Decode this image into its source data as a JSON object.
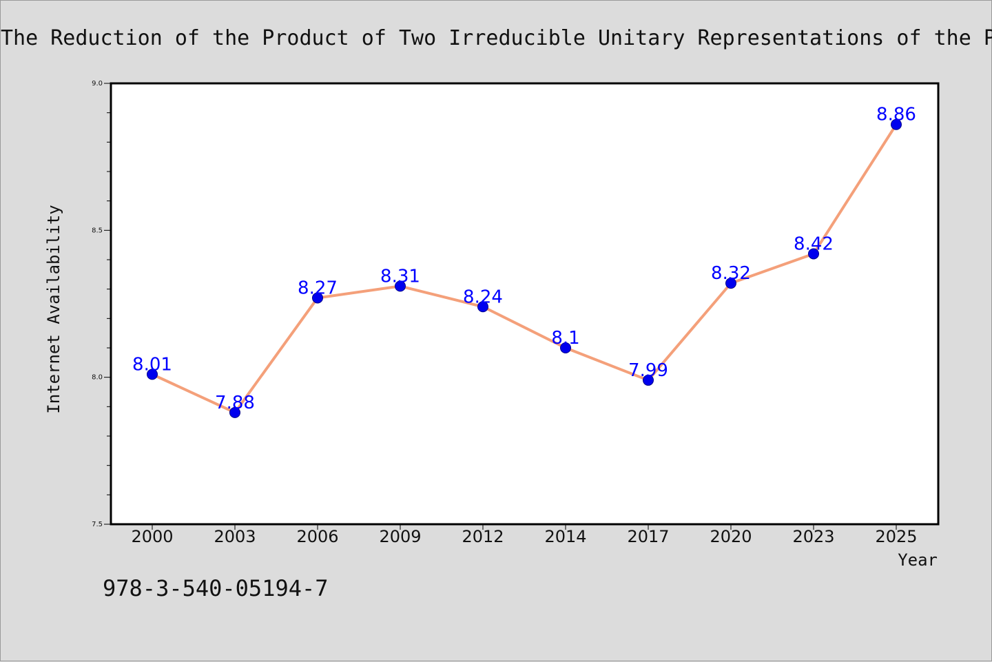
{
  "chart_data": {
    "type": "line",
    "title": "The Reduction of the Product of Two Irreducible Unitary Representations of the P",
    "xlabel": "Year",
    "ylabel": "Internet Availability",
    "categories": [
      "2000",
      "2003",
      "2006",
      "2009",
      "2012",
      "2014",
      "2017",
      "2020",
      "2023",
      "2025"
    ],
    "series": [
      {
        "values": [
          8.01,
          7.88,
          8.27,
          8.31,
          8.24,
          8.1,
          7.99,
          8.32,
          8.42,
          8.86
        ]
      }
    ],
    "data_labels": [
      "8.01",
      "7.88",
      "8.27",
      "8.31",
      "8.24",
      "8.1",
      "7.99",
      "8.32",
      "8.42",
      "8.86"
    ],
    "ylim": [
      7.5,
      9.0
    ],
    "yticks": [
      7.5,
      8.0,
      8.5,
      9.0
    ],
    "ytick_labels": [
      "7.5",
      "8.0",
      "8.5",
      "9.0"
    ],
    "grid": false,
    "colors": {
      "line": "#f4a07a",
      "marker": "#0000ee",
      "marker_edge": "#00008b",
      "data_label": "#0000ff",
      "background": "#dcdcdc",
      "plot_area": "#ffffff"
    }
  },
  "footer": {
    "isbn": "978-3-540-05194-7"
  }
}
